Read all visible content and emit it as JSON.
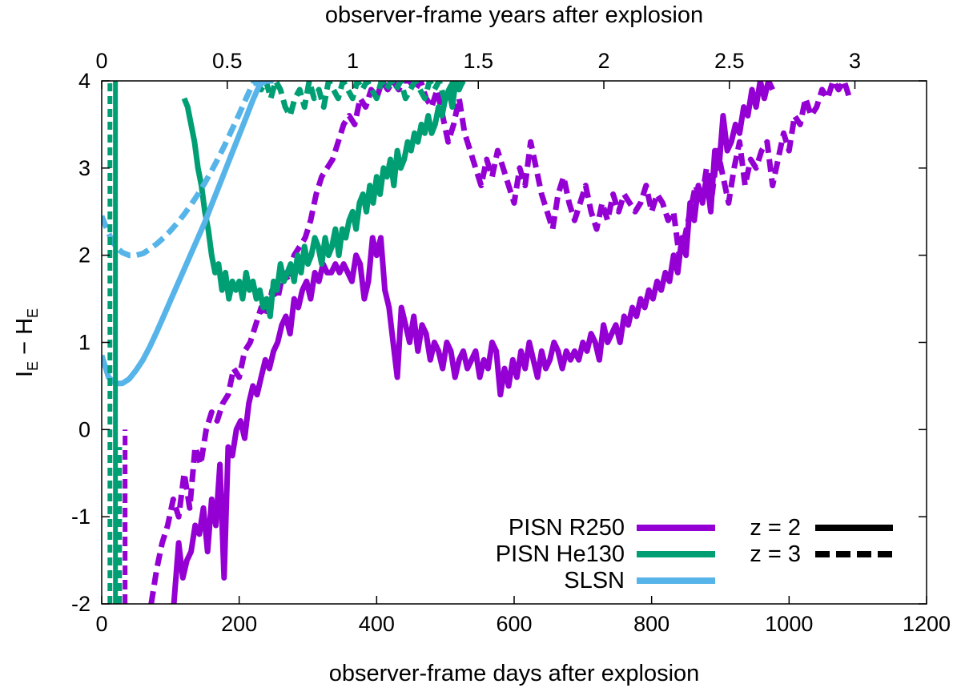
{
  "chart_data": {
    "type": "line",
    "xlabel": "observer-frame days after explosion",
    "x2label": "observer-frame years after explosion",
    "ylabel": "I_E − H_E",
    "ylabel_main": "I",
    "ylabel_sub1": "E",
    "ylabel_minus": " − H",
    "ylabel_sub2": "E",
    "xlim": [
      0,
      1200
    ],
    "ylim": [
      -2,
      4
    ],
    "x2lim": [
      0,
      3.2854
    ],
    "x_ticks": [
      0,
      200,
      400,
      600,
      800,
      1000,
      1200
    ],
    "y_ticks": [
      -2,
      -1,
      0,
      1,
      2,
      3,
      4
    ],
    "x2_ticks": [
      0,
      0.5,
      1,
      1.5,
      2,
      2.5,
      3
    ],
    "x_tick_labels": [
      "0",
      "200",
      "400",
      "600",
      "800",
      "1000",
      "1200"
    ],
    "y_tick_labels": [
      "-2",
      "-1",
      "0",
      "1",
      "2",
      "3",
      "4"
    ],
    "x2_tick_labels": [
      "0",
      "0.5",
      "1",
      "1.5",
      "2",
      "2.5",
      "3"
    ],
    "grid": false,
    "legend_position": "bottom-right",
    "legend_models": [
      {
        "label": "PISN R250",
        "color": "#9400d3"
      },
      {
        "label": "PISN He130",
        "color": "#009e73"
      },
      {
        "label": "SLSN",
        "color": "#56b4e9"
      }
    ],
    "legend_redshifts": [
      {
        "label": "z = 2",
        "style": "solid"
      },
      {
        "label": "z = 3",
        "style": "dashed"
      }
    ],
    "series": [
      {
        "model": "PISN R250",
        "redshift": "z = 2",
        "style": "solid",
        "color": "#9400d3",
        "x": [
          105,
          112,
          118,
          124,
          130,
          136,
          142,
          148,
          154,
          160,
          166,
          172,
          178,
          184,
          190,
          196,
          202,
          208,
          214,
          220,
          226,
          232,
          238,
          244,
          250,
          256,
          262,
          268,
          274,
          280,
          286,
          292,
          298,
          304,
          310,
          316,
          322,
          328,
          334,
          340,
          346,
          352,
          358,
          364,
          370,
          376,
          382,
          388,
          394,
          400,
          406,
          412,
          418,
          424,
          430,
          436,
          442,
          448,
          454,
          460,
          466,
          472,
          478,
          484,
          490,
          496,
          502,
          508,
          514,
          520,
          526,
          532,
          538,
          544,
          550,
          556,
          562,
          568,
          574,
          580,
          586,
          592,
          598,
          604,
          610,
          616,
          622,
          628,
          634,
          640,
          646,
          652,
          658,
          664,
          670,
          676,
          682,
          688,
          694,
          700,
          706,
          712,
          718,
          724,
          730,
          736,
          742,
          748,
          754,
          760,
          766,
          772,
          778,
          784,
          790,
          796,
          802,
          808,
          814,
          820,
          826,
          832,
          838,
          844,
          850,
          856,
          862,
          868,
          874,
          880,
          886,
          892,
          898,
          904,
          910,
          916,
          922,
          928,
          934,
          940,
          946,
          952,
          958,
          964,
          970,
          976
        ],
        "y": [
          -2.0,
          -1.3,
          -1.7,
          -1.5,
          -1.4,
          -1.1,
          -1.2,
          -0.9,
          -1.4,
          -0.8,
          -1.1,
          -0.4,
          -1.7,
          -0.2,
          -0.3,
          0.0,
          0.1,
          -0.1,
          0.3,
          0.5,
          0.4,
          0.6,
          0.8,
          0.7,
          0.9,
          1.0,
          1.2,
          1.3,
          1.1,
          1.5,
          1.4,
          1.6,
          1.7,
          1.5,
          1.8,
          1.7,
          1.9,
          1.8,
          1.8,
          1.9,
          1.8,
          1.9,
          1.8,
          1.7,
          2.0,
          1.9,
          1.5,
          1.7,
          2.2,
          2.0,
          2.2,
          1.6,
          1.4,
          1.0,
          0.6,
          1.4,
          1.2,
          1.0,
          1.3,
          0.9,
          1.2,
          1.1,
          0.8,
          1.0,
          0.9,
          0.7,
          1.0,
          0.9,
          0.6,
          0.8,
          0.9,
          0.7,
          0.8,
          0.9,
          0.6,
          0.8,
          0.7,
          1.0,
          0.9,
          0.4,
          0.7,
          0.5,
          0.8,
          0.6,
          0.9,
          0.7,
          1.0,
          0.8,
          0.6,
          0.9,
          0.7,
          0.8,
          1.0,
          0.9,
          0.7,
          0.9,
          0.8,
          0.9,
          0.8,
          1.0,
          0.9,
          1.1,
          1.0,
          0.8,
          1.2,
          1.0,
          1.1,
          1.2,
          1.0,
          1.3,
          1.2,
          1.4,
          1.3,
          1.5,
          1.4,
          1.6,
          1.5,
          1.7,
          1.6,
          1.8,
          1.7,
          2.0,
          1.8,
          2.2,
          2.0,
          2.6,
          2.4,
          2.8,
          2.6,
          2.9,
          2.5,
          3.2,
          3.0,
          3.6,
          3.2,
          3.3,
          3.5,
          3.4,
          3.7,
          3.6,
          3.9,
          3.7,
          4.0,
          3.8,
          4.0,
          3.9
        ]
      },
      {
        "model": "PISN R250",
        "redshift": "z = 3",
        "style": "dashed",
        "color": "#9400d3",
        "x": [
          72,
          80,
          88,
          96,
          104,
          112,
          120,
          128,
          136,
          144,
          152,
          160,
          168,
          176,
          184,
          192,
          200,
          208,
          216,
          224,
          232,
          240,
          248,
          256,
          264,
          272,
          280,
          288,
          296,
          304,
          312,
          320,
          328,
          336,
          344,
          352,
          360,
          368,
          376,
          384,
          392,
          400,
          408,
          416,
          424,
          432,
          440,
          448,
          456,
          464,
          472,
          480,
          488,
          496,
          504,
          512,
          520,
          528,
          536,
          544,
          552,
          560,
          568,
          576,
          584,
          592,
          600,
          608,
          616,
          624,
          632,
          640,
          648,
          656,
          664,
          672,
          680,
          688,
          696,
          704,
          712,
          720,
          728,
          736,
          744,
          752,
          760,
          768,
          776,
          784,
          792,
          800,
          808,
          816,
          824,
          832,
          840,
          848,
          856,
          864,
          872,
          880,
          888,
          896,
          904,
          912,
          920,
          928,
          936,
          944,
          952,
          960,
          968,
          976,
          984,
          992,
          1000,
          1008,
          1016,
          1024,
          1032,
          1040,
          1048,
          1056,
          1064,
          1072,
          1080,
          1088
        ],
        "y": [
          -2.0,
          -1.6,
          -1.3,
          -1.1,
          -0.8,
          -1.0,
          -0.5,
          -0.9,
          -0.2,
          -0.4,
          0.0,
          0.2,
          0.1,
          0.3,
          0.4,
          0.7,
          0.6,
          0.9,
          1.0,
          1.2,
          1.4,
          1.3,
          1.6,
          1.5,
          1.8,
          1.7,
          2.0,
          2.1,
          2.2,
          2.4,
          2.7,
          2.9,
          3.0,
          3.1,
          3.3,
          3.5,
          3.6,
          3.5,
          3.8,
          3.7,
          3.9,
          3.8,
          4.0,
          3.9,
          4.0,
          3.9,
          4.0,
          4.0,
          3.9,
          4.0,
          3.8,
          3.7,
          3.9,
          3.6,
          3.3,
          3.5,
          3.8,
          3.4,
          3.2,
          3.0,
          2.8,
          3.1,
          2.9,
          3.2,
          3.0,
          2.8,
          2.6,
          3.0,
          2.8,
          3.3,
          3.0,
          2.7,
          2.5,
          2.3,
          2.7,
          2.9,
          2.6,
          2.4,
          2.6,
          2.8,
          2.5,
          2.3,
          2.6,
          2.4,
          2.7,
          2.5,
          2.7,
          2.6,
          2.5,
          2.6,
          2.8,
          2.5,
          2.7,
          2.6,
          2.4,
          2.5,
          2.0,
          2.2,
          2.5,
          2.8,
          2.6,
          3.0,
          2.7,
          3.2,
          2.9,
          2.6,
          3.0,
          3.3,
          2.8,
          3.1,
          3.0,
          3.2,
          3.3,
          2.8,
          3.1,
          3.4,
          3.2,
          3.6,
          3.5,
          3.8,
          3.6,
          3.7,
          3.9,
          3.8,
          4.0,
          3.9,
          4.0,
          3.8
        ]
      },
      {
        "model": "PISN He130",
        "redshift": "z = 2",
        "style": "solid",
        "color": "#009e73",
        "x": [
          120,
          125,
          130,
          135,
          140,
          145,
          150,
          155,
          160,
          165,
          170,
          175,
          180,
          185,
          190,
          195,
          200,
          205,
          210,
          215,
          220,
          225,
          230,
          235,
          240,
          245,
          250,
          255,
          260,
          265,
          270,
          275,
          280,
          285,
          290,
          295,
          300,
          305,
          310,
          315,
          320,
          325,
          330,
          335,
          340,
          345,
          350,
          355,
          360,
          365,
          370,
          375,
          380,
          385,
          390,
          395,
          400,
          405,
          410,
          415,
          420,
          425,
          430,
          435,
          440,
          445,
          450,
          455,
          460,
          465,
          470,
          475,
          480,
          485,
          490,
          495,
          500,
          505,
          510,
          515,
          520,
          525
        ],
        "y": [
          3.8,
          3.7,
          3.5,
          3.3,
          3.0,
          2.8,
          2.5,
          2.3,
          2.0,
          1.8,
          1.9,
          1.6,
          1.8,
          1.5,
          1.7,
          1.6,
          1.7,
          1.5,
          1.8,
          1.6,
          1.7,
          1.5,
          1.6,
          1.4,
          1.5,
          1.3,
          1.7,
          1.6,
          1.9,
          1.7,
          1.8,
          1.9,
          1.7,
          2.0,
          1.8,
          2.1,
          1.9,
          2.0,
          2.2,
          2.1,
          1.9,
          2.2,
          2.0,
          2.1,
          2.3,
          2.0,
          2.3,
          2.2,
          2.4,
          2.5,
          2.3,
          2.6,
          2.7,
          2.5,
          2.8,
          2.6,
          2.9,
          2.7,
          3.0,
          2.9,
          3.1,
          2.8,
          3.2,
          3.0,
          3.1,
          3.3,
          3.2,
          3.4,
          3.3,
          3.5,
          3.4,
          3.6,
          3.4,
          3.5,
          3.7,
          3.6,
          3.8,
          3.9,
          3.7,
          4.0,
          3.9,
          4.0
        ]
      },
      {
        "model": "PISN He130",
        "redshift": "z = 3",
        "style": "dashed",
        "color": "#009e73",
        "x": [
          225,
          232,
          239,
          246,
          253,
          260,
          267,
          274,
          281,
          288,
          295,
          302,
          309,
          316,
          323,
          330,
          337,
          344,
          351,
          358,
          365,
          372,
          379,
          386,
          393,
          400,
          407,
          414,
          421,
          428,
          435,
          442,
          449,
          456,
          463,
          470,
          477,
          484,
          491,
          498,
          505,
          512,
          519,
          526
        ],
        "y": [
          4.0,
          3.9,
          4.0,
          3.8,
          4.0,
          3.9,
          3.7,
          3.6,
          3.8,
          3.9,
          3.7,
          4.0,
          3.8,
          3.9,
          3.7,
          4.0,
          3.9,
          3.8,
          4.0,
          3.9,
          3.8,
          4.0,
          3.9,
          4.0,
          3.9,
          3.8,
          4.0,
          3.9,
          4.0,
          3.9,
          4.0,
          3.8,
          3.9,
          4.0,
          3.9,
          3.8,
          4.0,
          3.9,
          4.0,
          3.8,
          3.9,
          4.0,
          3.9,
          4.0
        ]
      },
      {
        "model": "SLSN",
        "redshift": "z = 2",
        "style": "solid",
        "color": "#56b4e9",
        "x": [
          0,
          10,
          20,
          30,
          40,
          50,
          60,
          70,
          80,
          90,
          100,
          110,
          120,
          130,
          140,
          150,
          160,
          170,
          180,
          190,
          200,
          210,
          220,
          230,
          240,
          250
        ],
        "y": [
          0.85,
          0.6,
          0.53,
          0.53,
          0.58,
          0.68,
          0.8,
          0.95,
          1.12,
          1.3,
          1.48,
          1.66,
          1.84,
          2.02,
          2.2,
          2.38,
          2.58,
          2.78,
          2.98,
          3.18,
          3.38,
          3.58,
          3.78,
          3.96,
          4.0,
          4.0
        ]
      },
      {
        "model": "SLSN",
        "redshift": "z = 3",
        "style": "dashed",
        "color": "#56b4e9",
        "x": [
          0,
          10,
          20,
          30,
          40,
          50,
          60,
          70,
          80,
          90,
          100,
          110,
          120,
          130,
          140,
          150,
          160,
          170,
          180,
          190,
          200,
          210,
          220,
          230
        ],
        "y": [
          2.45,
          2.25,
          2.1,
          2.03,
          2.0,
          2.0,
          2.02,
          2.07,
          2.13,
          2.2,
          2.28,
          2.37,
          2.47,
          2.58,
          2.7,
          2.83,
          2.97,
          3.12,
          3.28,
          3.45,
          3.62,
          3.8,
          3.97,
          4.0
        ]
      }
    ]
  }
}
